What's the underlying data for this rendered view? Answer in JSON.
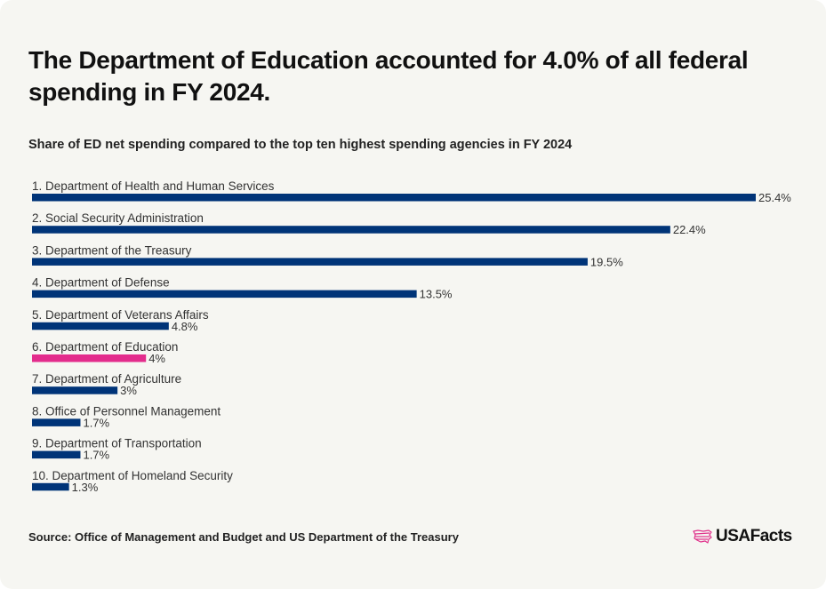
{
  "title": "The Department of Education accounted for 4.0% of all federal spending in FY 2024.",
  "subtitle": "Share of ED net spending compared to the top ten highest spending agencies in FY 2024",
  "source": "Source: Office of Management and Budget and US Department of the Treasury",
  "logo": {
    "text": "USAFacts",
    "icon": "usa-map-flag-icon",
    "color": "#e0308a"
  },
  "colors": {
    "default_bar": "#003478",
    "highlight_bar": "#e32c8c"
  },
  "chart_data": {
    "type": "bar",
    "orientation": "horizontal",
    "title": "Share of ED net spending compared to the top ten highest spending agencies in FY 2024",
    "xlabel": "",
    "ylabel": "",
    "grid": false,
    "xlim": [
      0,
      25.4
    ],
    "categories": [
      "1. Department of Health and Human Services",
      "2. Social Security Administration",
      "3. Department of the Treasury",
      "4. Department of Defense",
      "5. Department of Veterans Affairs",
      "6. Department of Education",
      "7. Department of Agriculture",
      "8. Office of Personnel Management",
      "9. Department of Transportation",
      "10. Department of Homeland Security"
    ],
    "values": [
      25.4,
      22.4,
      19.5,
      13.5,
      4.8,
      4.0,
      3.0,
      1.7,
      1.7,
      1.3
    ],
    "value_labels": [
      "25.4%",
      "22.4%",
      "19.5%",
      "13.5%",
      "4.8%",
      "4%",
      "3%",
      "1.7%",
      "1.7%",
      "1.3%"
    ],
    "highlight_index": 5
  }
}
